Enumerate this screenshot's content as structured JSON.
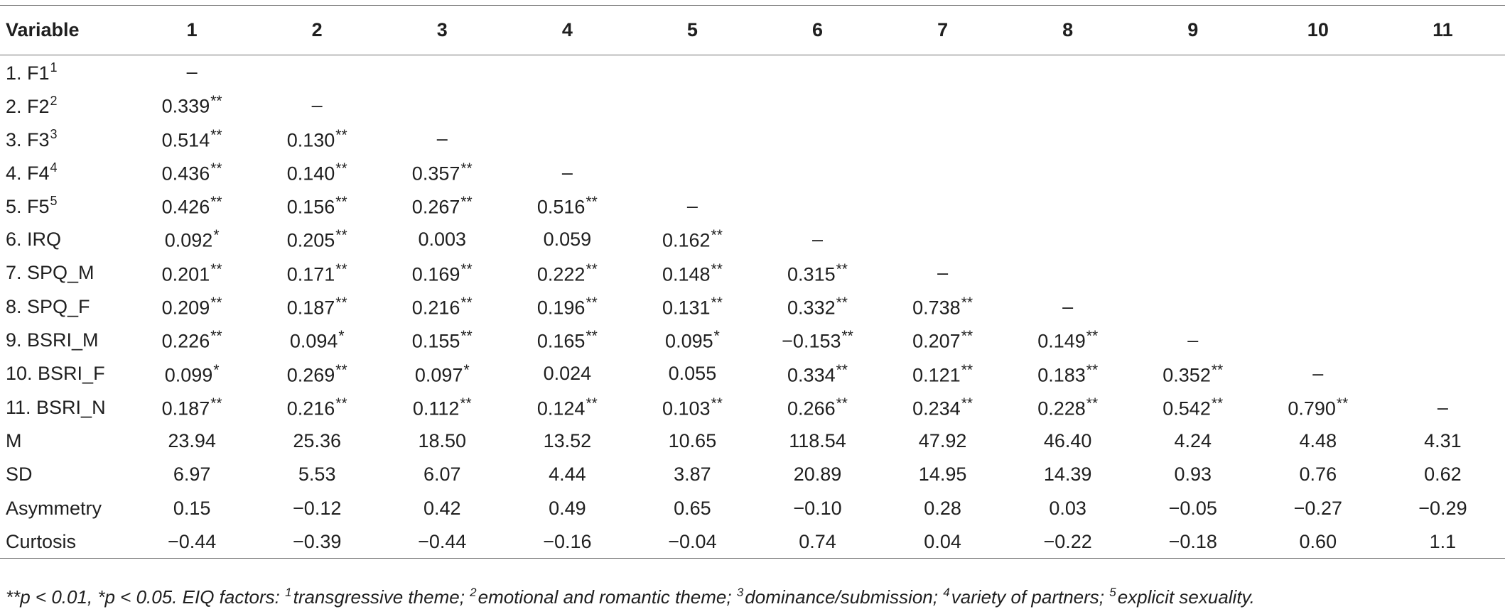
{
  "table": {
    "headers": [
      "Variable",
      "1",
      "2",
      "3",
      "4",
      "5",
      "6",
      "7",
      "8",
      "9",
      "10",
      "11"
    ],
    "rows": [
      {
        "label": "1. F1",
        "sup": "1",
        "cells": [
          {
            "v": "–",
            "s": ""
          },
          {
            "v": "",
            "s": ""
          },
          {
            "v": "",
            "s": ""
          },
          {
            "v": "",
            "s": ""
          },
          {
            "v": "",
            "s": ""
          },
          {
            "v": "",
            "s": ""
          },
          {
            "v": "",
            "s": ""
          },
          {
            "v": "",
            "s": ""
          },
          {
            "v": "",
            "s": ""
          },
          {
            "v": "",
            "s": ""
          },
          {
            "v": "",
            "s": ""
          }
        ]
      },
      {
        "label": "2. F2",
        "sup": "2",
        "cells": [
          {
            "v": "0.339",
            "s": "**"
          },
          {
            "v": "–",
            "s": ""
          },
          {
            "v": "",
            "s": ""
          },
          {
            "v": "",
            "s": ""
          },
          {
            "v": "",
            "s": ""
          },
          {
            "v": "",
            "s": ""
          },
          {
            "v": "",
            "s": ""
          },
          {
            "v": "",
            "s": ""
          },
          {
            "v": "",
            "s": ""
          },
          {
            "v": "",
            "s": ""
          },
          {
            "v": "",
            "s": ""
          }
        ]
      },
      {
        "label": "3. F3",
        "sup": "3",
        "cells": [
          {
            "v": "0.514",
            "s": "**"
          },
          {
            "v": "0.130",
            "s": "**"
          },
          {
            "v": "–",
            "s": ""
          },
          {
            "v": "",
            "s": ""
          },
          {
            "v": "",
            "s": ""
          },
          {
            "v": "",
            "s": ""
          },
          {
            "v": "",
            "s": ""
          },
          {
            "v": "",
            "s": ""
          },
          {
            "v": "",
            "s": ""
          },
          {
            "v": "",
            "s": ""
          },
          {
            "v": "",
            "s": ""
          }
        ]
      },
      {
        "label": "4. F4",
        "sup": "4",
        "cells": [
          {
            "v": "0.436",
            "s": "**"
          },
          {
            "v": "0.140",
            "s": "**"
          },
          {
            "v": "0.357",
            "s": "**"
          },
          {
            "v": "–",
            "s": ""
          },
          {
            "v": "",
            "s": ""
          },
          {
            "v": "",
            "s": ""
          },
          {
            "v": "",
            "s": ""
          },
          {
            "v": "",
            "s": ""
          },
          {
            "v": "",
            "s": ""
          },
          {
            "v": "",
            "s": ""
          },
          {
            "v": "",
            "s": ""
          }
        ]
      },
      {
        "label": "5. F5",
        "sup": "5",
        "cells": [
          {
            "v": "0.426",
            "s": "**"
          },
          {
            "v": "0.156",
            "s": "**"
          },
          {
            "v": "0.267",
            "s": "**"
          },
          {
            "v": "0.516",
            "s": "**"
          },
          {
            "v": "–",
            "s": ""
          },
          {
            "v": "",
            "s": ""
          },
          {
            "v": "",
            "s": ""
          },
          {
            "v": "",
            "s": ""
          },
          {
            "v": "",
            "s": ""
          },
          {
            "v": "",
            "s": ""
          },
          {
            "v": "",
            "s": ""
          }
        ]
      },
      {
        "label": "6. IRQ",
        "sup": "",
        "cells": [
          {
            "v": "0.092",
            "s": "*"
          },
          {
            "v": "0.205",
            "s": "**"
          },
          {
            "v": "0.003",
            "s": ""
          },
          {
            "v": "0.059",
            "s": ""
          },
          {
            "v": "0.162",
            "s": "**"
          },
          {
            "v": "–",
            "s": ""
          },
          {
            "v": "",
            "s": ""
          },
          {
            "v": "",
            "s": ""
          },
          {
            "v": "",
            "s": ""
          },
          {
            "v": "",
            "s": ""
          },
          {
            "v": "",
            "s": ""
          }
        ]
      },
      {
        "label": "7. SPQ_M",
        "sup": "",
        "cells": [
          {
            "v": "0.201",
            "s": "**"
          },
          {
            "v": "0.171",
            "s": "**"
          },
          {
            "v": "0.169",
            "s": "**"
          },
          {
            "v": "0.222",
            "s": "**"
          },
          {
            "v": "0.148",
            "s": "**"
          },
          {
            "v": "0.315",
            "s": "**"
          },
          {
            "v": "–",
            "s": ""
          },
          {
            "v": "",
            "s": ""
          },
          {
            "v": "",
            "s": ""
          },
          {
            "v": "",
            "s": ""
          },
          {
            "v": "",
            "s": ""
          }
        ]
      },
      {
        "label": "8. SPQ_F",
        "sup": "",
        "cells": [
          {
            "v": "0.209",
            "s": "**"
          },
          {
            "v": "0.187",
            "s": "**"
          },
          {
            "v": "0.216",
            "s": "**"
          },
          {
            "v": "0.196",
            "s": "**"
          },
          {
            "v": "0.131",
            "s": "**"
          },
          {
            "v": "0.332",
            "s": "**"
          },
          {
            "v": "0.738",
            "s": "**"
          },
          {
            "v": "–",
            "s": ""
          },
          {
            "v": "",
            "s": ""
          },
          {
            "v": "",
            "s": ""
          },
          {
            "v": "",
            "s": ""
          }
        ]
      },
      {
        "label": "9. BSRI_M",
        "sup": "",
        "cells": [
          {
            "v": "0.226",
            "s": "**"
          },
          {
            "v": "0.094",
            "s": "*"
          },
          {
            "v": "0.155",
            "s": "**"
          },
          {
            "v": "0.165",
            "s": "**"
          },
          {
            "v": "0.095",
            "s": "*"
          },
          {
            "v": "−0.153",
            "s": "**"
          },
          {
            "v": "0.207",
            "s": "**"
          },
          {
            "v": "0.149",
            "s": "**"
          },
          {
            "v": "–",
            "s": ""
          },
          {
            "v": "",
            "s": ""
          },
          {
            "v": "",
            "s": ""
          }
        ]
      },
      {
        "label": "10. BSRI_F",
        "sup": "",
        "cells": [
          {
            "v": "0.099",
            "s": "*"
          },
          {
            "v": "0.269",
            "s": "**"
          },
          {
            "v": "0.097",
            "s": "*"
          },
          {
            "v": "0.024",
            "s": ""
          },
          {
            "v": "0.055",
            "s": ""
          },
          {
            "v": "0.334",
            "s": "**"
          },
          {
            "v": "0.121",
            "s": "**"
          },
          {
            "v": "0.183",
            "s": "**"
          },
          {
            "v": "0.352",
            "s": "**"
          },
          {
            "v": "–",
            "s": ""
          },
          {
            "v": "",
            "s": ""
          }
        ]
      },
      {
        "label": "11. BSRI_N",
        "sup": "",
        "cells": [
          {
            "v": "0.187",
            "s": "**"
          },
          {
            "v": "0.216",
            "s": "**"
          },
          {
            "v": "0.112",
            "s": "**"
          },
          {
            "v": "0.124",
            "s": "**"
          },
          {
            "v": "0.103",
            "s": "**"
          },
          {
            "v": "0.266",
            "s": "**"
          },
          {
            "v": "0.234",
            "s": "**"
          },
          {
            "v": "0.228",
            "s": "**"
          },
          {
            "v": "0.542",
            "s": "**"
          },
          {
            "v": "0.790",
            "s": "**"
          },
          {
            "v": "–",
            "s": ""
          }
        ]
      },
      {
        "label": "M",
        "sup": "",
        "cells": [
          {
            "v": "23.94",
            "s": ""
          },
          {
            "v": "25.36",
            "s": ""
          },
          {
            "v": "18.50",
            "s": ""
          },
          {
            "v": "13.52",
            "s": ""
          },
          {
            "v": "10.65",
            "s": ""
          },
          {
            "v": "118.54",
            "s": ""
          },
          {
            "v": "47.92",
            "s": ""
          },
          {
            "v": "46.40",
            "s": ""
          },
          {
            "v": "4.24",
            "s": ""
          },
          {
            "v": "4.48",
            "s": ""
          },
          {
            "v": "4.31",
            "s": ""
          }
        ]
      },
      {
        "label": "SD",
        "sup": "",
        "cells": [
          {
            "v": "6.97",
            "s": ""
          },
          {
            "v": "5.53",
            "s": ""
          },
          {
            "v": "6.07",
            "s": ""
          },
          {
            "v": "4.44",
            "s": ""
          },
          {
            "v": "3.87",
            "s": ""
          },
          {
            "v": "20.89",
            "s": ""
          },
          {
            "v": "14.95",
            "s": ""
          },
          {
            "v": "14.39",
            "s": ""
          },
          {
            "v": "0.93",
            "s": ""
          },
          {
            "v": "0.76",
            "s": ""
          },
          {
            "v": "0.62",
            "s": ""
          }
        ]
      },
      {
        "label": "Asymmetry",
        "sup": "",
        "cells": [
          {
            "v": "0.15",
            "s": ""
          },
          {
            "v": "−0.12",
            "s": ""
          },
          {
            "v": "0.42",
            "s": ""
          },
          {
            "v": "0.49",
            "s": ""
          },
          {
            "v": "0.65",
            "s": ""
          },
          {
            "v": "−0.10",
            "s": ""
          },
          {
            "v": "0.28",
            "s": ""
          },
          {
            "v": "0.03",
            "s": ""
          },
          {
            "v": "−0.05",
            "s": ""
          },
          {
            "v": "−0.27",
            "s": ""
          },
          {
            "v": "−0.29",
            "s": ""
          }
        ]
      },
      {
        "label": "Curtosis",
        "sup": "",
        "cells": [
          {
            "v": "−0.44",
            "s": ""
          },
          {
            "v": "−0.39",
            "s": ""
          },
          {
            "v": "−0.44",
            "s": ""
          },
          {
            "v": "−0.16",
            "s": ""
          },
          {
            "v": "−0.04",
            "s": ""
          },
          {
            "v": "0.74",
            "s": ""
          },
          {
            "v": "0.04",
            "s": ""
          },
          {
            "v": "−0.22",
            "s": ""
          },
          {
            "v": "−0.18",
            "s": ""
          },
          {
            "v": "0.60",
            "s": ""
          },
          {
            "v": "1.1",
            "s": ""
          }
        ]
      }
    ]
  },
  "footnote": [
    {
      "text": "**p < 0.01, *p < 0.05. EIQ factors: ",
      "sup": ""
    },
    {
      "text": "transgressive theme; ",
      "sup": "1"
    },
    {
      "text": "emotional and romantic theme; ",
      "sup": "2"
    },
    {
      "text": "dominance/submission; ",
      "sup": "3"
    },
    {
      "text": "variety of partners; ",
      "sup": "4"
    },
    {
      "text": "explicit sexuality.",
      "sup": "5"
    }
  ]
}
